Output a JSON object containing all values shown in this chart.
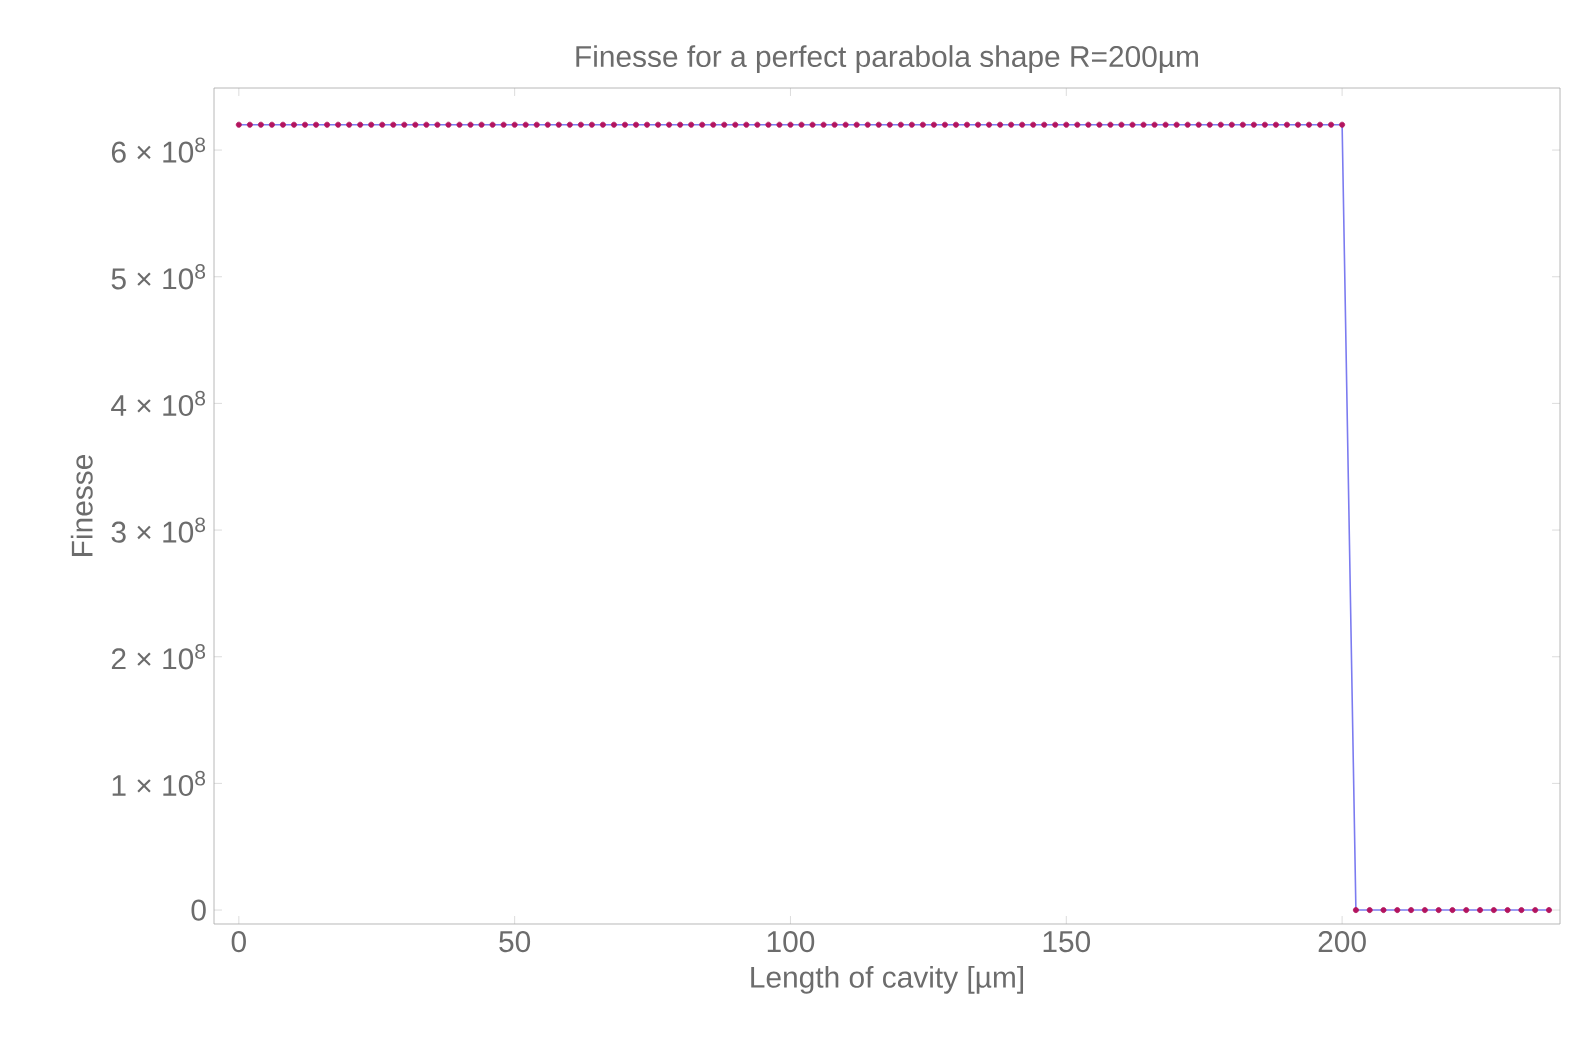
{
  "chart_data": {
    "type": "line",
    "title": "Finesse for a perfect parabola shape R=200µm",
    "xlabel": "Length of cavity [µm]",
    "ylabel": "Finesse",
    "xlim": [
      -4.5,
      239.5
    ],
    "ylim": [
      -11000000,
      649000000
    ],
    "xticks": [
      0,
      50,
      100,
      150,
      200
    ],
    "yticks": [
      {
        "value": 0,
        "label": "0"
      },
      {
        "value": 100000000,
        "label": "1 × 10$^{8}$"
      },
      {
        "value": 200000000,
        "label": "2 × 10$^{8}$"
      },
      {
        "value": 300000000,
        "label": "3 × 10$^{8}$"
      },
      {
        "value": 400000000,
        "label": "4 × 10$^{8}$"
      },
      {
        "value": 500000000,
        "label": "5 × 10$^{8}$"
      },
      {
        "value": 600000000,
        "label": "6 × 10$^{8}$"
      }
    ],
    "grid": false,
    "series": [
      {
        "color": "#7b7bf0",
        "marker": "none",
        "line_style": "solid",
        "x": [
          0,
          2,
          4,
          6,
          8,
          10,
          12,
          14,
          16,
          18,
          20,
          22,
          24,
          26,
          28,
          30,
          32,
          34,
          36,
          38,
          40,
          42,
          44,
          46,
          48,
          50,
          52,
          54,
          56,
          58,
          60,
          62,
          64,
          66,
          68,
          70,
          72,
          74,
          76,
          78,
          80,
          82,
          84,
          86,
          88,
          90,
          92,
          94,
          96,
          98,
          100,
          102,
          104,
          106,
          108,
          110,
          112,
          114,
          116,
          118,
          120,
          122,
          124,
          126,
          128,
          130,
          132,
          134,
          136,
          138,
          140,
          142,
          144,
          146,
          148,
          150,
          152,
          154,
          156,
          158,
          160,
          162,
          164,
          166,
          168,
          170,
          172,
          174,
          176,
          178,
          180,
          182,
          184,
          186,
          188,
          190,
          192,
          194,
          196,
          198,
          200,
          202.5,
          205,
          207.5,
          210,
          212.5,
          215,
          217.5,
          220,
          222.5,
          225,
          227.5,
          230,
          232.5,
          235,
          237.5
        ],
        "values": [
          620000000,
          620000000,
          620000000,
          620000000,
          620000000,
          620000000,
          620000000,
          620000000,
          620000000,
          620000000,
          620000000,
          620000000,
          620000000,
          620000000,
          620000000,
          620000000,
          620000000,
          620000000,
          620000000,
          620000000,
          620000000,
          620000000,
          620000000,
          620000000,
          620000000,
          620000000,
          620000000,
          620000000,
          620000000,
          620000000,
          620000000,
          620000000,
          620000000,
          620000000,
          620000000,
          620000000,
          620000000,
          620000000,
          620000000,
          620000000,
          620000000,
          620000000,
          620000000,
          620000000,
          620000000,
          620000000,
          620000000,
          620000000,
          620000000,
          620000000,
          620000000,
          620000000,
          620000000,
          620000000,
          620000000,
          620000000,
          620000000,
          620000000,
          620000000,
          620000000,
          620000000,
          620000000,
          620000000,
          620000000,
          620000000,
          620000000,
          620000000,
          620000000,
          620000000,
          620000000,
          620000000,
          620000000,
          620000000,
          620000000,
          620000000,
          620000000,
          620000000,
          620000000,
          620000000,
          620000000,
          620000000,
          620000000,
          620000000,
          620000000,
          620000000,
          620000000,
          620000000,
          620000000,
          620000000,
          620000000,
          620000000,
          620000000,
          620000000,
          620000000,
          620000000,
          620000000,
          620000000,
          620000000,
          620000000,
          620000000,
          620000000,
          0,
          0,
          0,
          0,
          0,
          0,
          0,
          0,
          0,
          0,
          0,
          0,
          0,
          0,
          0
        ]
      },
      {
        "type": "scatter",
        "color": "#b3145e",
        "marker": "circle",
        "x": [
          0,
          2,
          4,
          6,
          8,
          10,
          12,
          14,
          16,
          18,
          20,
          22,
          24,
          26,
          28,
          30,
          32,
          34,
          36,
          38,
          40,
          42,
          44,
          46,
          48,
          50,
          52,
          54,
          56,
          58,
          60,
          62,
          64,
          66,
          68,
          70,
          72,
          74,
          76,
          78,
          80,
          82,
          84,
          86,
          88,
          90,
          92,
          94,
          96,
          98,
          100,
          102,
          104,
          106,
          108,
          110,
          112,
          114,
          116,
          118,
          120,
          122,
          124,
          126,
          128,
          130,
          132,
          134,
          136,
          138,
          140,
          142,
          144,
          146,
          148,
          150,
          152,
          154,
          156,
          158,
          160,
          162,
          164,
          166,
          168,
          170,
          172,
          174,
          176,
          178,
          180,
          182,
          184,
          186,
          188,
          190,
          192,
          194,
          196,
          198,
          200,
          202.5,
          205,
          207.5,
          210,
          212.5,
          215,
          217.5,
          220,
          222.5,
          225,
          227.5,
          230,
          232.5,
          235,
          237.5
        ],
        "values": [
          620000000,
          620000000,
          620000000,
          620000000,
          620000000,
          620000000,
          620000000,
          620000000,
          620000000,
          620000000,
          620000000,
          620000000,
          620000000,
          620000000,
          620000000,
          620000000,
          620000000,
          620000000,
          620000000,
          620000000,
          620000000,
          620000000,
          620000000,
          620000000,
          620000000,
          620000000,
          620000000,
          620000000,
          620000000,
          620000000,
          620000000,
          620000000,
          620000000,
          620000000,
          620000000,
          620000000,
          620000000,
          620000000,
          620000000,
          620000000,
          620000000,
          620000000,
          620000000,
          620000000,
          620000000,
          620000000,
          620000000,
          620000000,
          620000000,
          620000000,
          620000000,
          620000000,
          620000000,
          620000000,
          620000000,
          620000000,
          620000000,
          620000000,
          620000000,
          620000000,
          620000000,
          620000000,
          620000000,
          620000000,
          620000000,
          620000000,
          620000000,
          620000000,
          620000000,
          620000000,
          620000000,
          620000000,
          620000000,
          620000000,
          620000000,
          620000000,
          620000000,
          620000000,
          620000000,
          620000000,
          620000000,
          620000000,
          620000000,
          620000000,
          620000000,
          620000000,
          620000000,
          620000000,
          620000000,
          620000000,
          620000000,
          620000000,
          620000000,
          620000000,
          620000000,
          620000000,
          620000000,
          620000000,
          620000000,
          620000000,
          620000000,
          0,
          0,
          0,
          0,
          0,
          0,
          0,
          0,
          0,
          0,
          0,
          0,
          0,
          0,
          0
        ]
      }
    ]
  }
}
